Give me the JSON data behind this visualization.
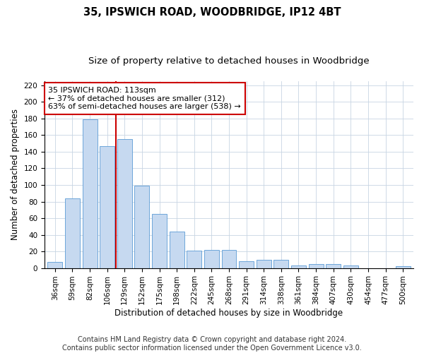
{
  "title_line1": "35, IPSWICH ROAD, WOODBRIDGE, IP12 4BT",
  "title_line2": "Size of property relative to detached houses in Woodbridge",
  "xlabel": "Distribution of detached houses by size in Woodbridge",
  "ylabel": "Number of detached properties",
  "categories": [
    "36sqm",
    "59sqm",
    "82sqm",
    "106sqm",
    "129sqm",
    "152sqm",
    "175sqm",
    "198sqm",
    "222sqm",
    "245sqm",
    "268sqm",
    "291sqm",
    "314sqm",
    "338sqm",
    "361sqm",
    "384sqm",
    "407sqm",
    "430sqm",
    "454sqm",
    "477sqm",
    "500sqm"
  ],
  "values": [
    7,
    84,
    179,
    147,
    155,
    99,
    65,
    44,
    21,
    22,
    22,
    8,
    10,
    10,
    3,
    5,
    5,
    3,
    0,
    0,
    2
  ],
  "bar_color": "#c6d9f0",
  "bar_edge_color": "#5b9bd5",
  "redline_index": 3,
  "annotation_line1": "35 IPSWICH ROAD: 113sqm",
  "annotation_line2": "← 37% of detached houses are smaller (312)",
  "annotation_line3": "63% of semi-detached houses are larger (538) →",
  "annotation_box_color": "#ffffff",
  "annotation_box_edge_color": "#cc0000",
  "redline_color": "#cc0000",
  "ylim": [
    0,
    225
  ],
  "yticks": [
    0,
    20,
    40,
    60,
    80,
    100,
    120,
    140,
    160,
    180,
    200,
    220
  ],
  "footer_line1": "Contains HM Land Registry data © Crown copyright and database right 2024.",
  "footer_line2": "Contains public sector information licensed under the Open Government Licence v3.0.",
  "background_color": "#ffffff",
  "grid_color": "#c8d4e3",
  "title_fontsize": 10.5,
  "subtitle_fontsize": 9.5,
  "axis_label_fontsize": 8.5,
  "tick_fontsize": 7.5,
  "annotation_fontsize": 8,
  "footer_fontsize": 7
}
